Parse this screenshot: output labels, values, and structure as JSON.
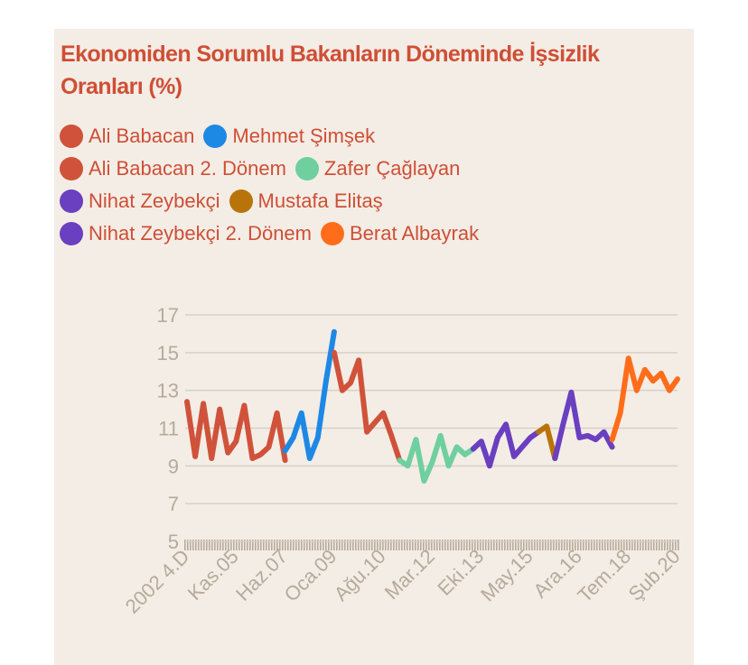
{
  "chart_data": {
    "type": "line",
    "title": "Ekonomiden Sorumlu Bakanların Döneminde İşsizlik Oranları (%)",
    "categories": [
      "2002 4.D",
      null,
      null,
      null,
      null,
      null,
      "Kas.05",
      null,
      null,
      null,
      null,
      null,
      "Haz.07",
      null,
      null,
      null,
      null,
      null,
      "Oca.09",
      null,
      null,
      null,
      null,
      null,
      "Ağu.10",
      null,
      null,
      null,
      null,
      null,
      "Mar.12",
      null,
      null,
      null,
      null,
      null,
      "Eki.13",
      null,
      null,
      null,
      null,
      null,
      "May.15",
      null,
      null,
      null,
      null,
      null,
      "Ara.16",
      null,
      null,
      null,
      null,
      null,
      "Tem.18",
      null,
      null,
      null,
      null,
      null,
      "Şub.20"
    ],
    "series": [
      {
        "name": "Ali Babacan",
        "color": "#d0523a",
        "values": [
          12.4,
          9.5,
          12.3,
          9.4,
          12.0,
          9.7,
          10.3,
          12.2,
          9.4,
          9.6,
          10.0,
          11.8,
          9.3,
          null,
          null,
          null,
          null,
          null,
          null,
          null,
          null,
          null,
          null,
          null,
          null,
          null,
          null,
          null,
          null,
          null,
          null,
          null,
          null,
          null,
          null,
          null,
          null,
          null,
          null,
          null,
          null,
          null,
          null,
          null,
          null,
          null,
          null,
          null,
          null,
          null,
          null,
          null,
          null,
          null,
          null,
          null,
          null,
          null,
          null,
          null,
          null
        ]
      },
      {
        "name": "Mehmet Şimşek",
        "color": "#1e88e5",
        "values": [
          null,
          null,
          null,
          null,
          null,
          null,
          null,
          null,
          null,
          null,
          null,
          null,
          9.8,
          10.5,
          11.8,
          9.4,
          10.5,
          13.5,
          16.1,
          null,
          null,
          null,
          null,
          null,
          null,
          null,
          null,
          null,
          null,
          null,
          null,
          null,
          null,
          null,
          null,
          null,
          null,
          null,
          null,
          null,
          null,
          null,
          null,
          null,
          null,
          null,
          null,
          null,
          null,
          null,
          null,
          null,
          null,
          null,
          null,
          null,
          null,
          null,
          null,
          null,
          null
        ]
      },
      {
        "name": "Ali Babacan 2. Dönem",
        "color": "#d0523a",
        "values": [
          null,
          null,
          null,
          null,
          null,
          null,
          null,
          null,
          null,
          null,
          null,
          null,
          null,
          null,
          null,
          null,
          null,
          null,
          15.0,
          13.0,
          13.4,
          14.6,
          10.8,
          11.3,
          11.8,
          10.6,
          9.3,
          null,
          null,
          null,
          null,
          null,
          null,
          null,
          null,
          null,
          null,
          null,
          null,
          null,
          null,
          null,
          null,
          null,
          null,
          null,
          null,
          null,
          null,
          null,
          null,
          null,
          null,
          null,
          null,
          null,
          null,
          null,
          null,
          null,
          null
        ]
      },
      {
        "name": "Zafer Çağlayan",
        "color": "#6fcf9f",
        "values": [
          null,
          null,
          null,
          null,
          null,
          null,
          null,
          null,
          null,
          null,
          null,
          null,
          null,
          null,
          null,
          null,
          null,
          null,
          null,
          null,
          null,
          null,
          null,
          null,
          null,
          null,
          9.3,
          9.0,
          10.4,
          8.2,
          9.2,
          10.6,
          9.0,
          10.0,
          9.6,
          9.9,
          null,
          null,
          null,
          null,
          null,
          null,
          null,
          null,
          null,
          null,
          null,
          null,
          null,
          null,
          null,
          null,
          null,
          null,
          null,
          null,
          null,
          null,
          null,
          null,
          null
        ]
      },
      {
        "name": "Nihat Zeybekçi",
        "color": "#6a3fc0",
        "values": [
          null,
          null,
          null,
          null,
          null,
          null,
          null,
          null,
          null,
          null,
          null,
          null,
          null,
          null,
          null,
          null,
          null,
          null,
          null,
          null,
          null,
          null,
          null,
          null,
          null,
          null,
          null,
          null,
          null,
          null,
          null,
          null,
          null,
          null,
          null,
          9.9,
          10.3,
          9.0,
          10.5,
          11.2,
          9.5,
          10.0,
          10.5,
          10.8,
          null,
          null,
          null,
          null,
          null,
          null,
          null,
          null,
          null,
          null,
          null,
          null,
          null,
          null,
          null,
          null,
          null
        ]
      },
      {
        "name": "Mustafa Elitaş",
        "color": "#b8740a",
        "values": [
          null,
          null,
          null,
          null,
          null,
          null,
          null,
          null,
          null,
          null,
          null,
          null,
          null,
          null,
          null,
          null,
          null,
          null,
          null,
          null,
          null,
          null,
          null,
          null,
          null,
          null,
          null,
          null,
          null,
          null,
          null,
          null,
          null,
          null,
          null,
          null,
          null,
          null,
          null,
          null,
          null,
          null,
          null,
          10.8,
          11.1,
          9.4,
          null,
          null,
          null,
          null,
          null,
          null,
          null,
          null,
          null,
          null,
          null,
          null,
          null,
          null,
          null
        ]
      },
      {
        "name": "Nihat Zeybekçi 2. Dönem",
        "color": "#6a3fc0",
        "values": [
          null,
          null,
          null,
          null,
          null,
          null,
          null,
          null,
          null,
          null,
          null,
          null,
          null,
          null,
          null,
          null,
          null,
          null,
          null,
          null,
          null,
          null,
          null,
          null,
          null,
          null,
          null,
          null,
          null,
          null,
          null,
          null,
          null,
          null,
          null,
          null,
          null,
          null,
          null,
          null,
          null,
          null,
          null,
          null,
          null,
          9.4,
          11.2,
          12.9,
          10.5,
          10.6,
          10.4,
          10.8,
          10.0,
          null,
          null,
          null,
          null,
          null,
          null,
          null,
          null
        ]
      },
      {
        "name": "Berat Albayrak",
        "color": "#ff6d1a",
        "values": [
          null,
          null,
          null,
          null,
          null,
          null,
          null,
          null,
          null,
          null,
          null,
          null,
          null,
          null,
          null,
          null,
          null,
          null,
          null,
          null,
          null,
          null,
          null,
          null,
          null,
          null,
          null,
          null,
          null,
          null,
          null,
          null,
          null,
          null,
          null,
          null,
          null,
          null,
          null,
          null,
          null,
          null,
          null,
          null,
          null,
          null,
          null,
          null,
          null,
          null,
          null,
          null,
          10.4,
          11.8,
          14.7,
          13.0,
          14.1,
          13.5,
          13.9,
          13.0,
          13.6
        ]
      }
    ],
    "ylim": [
      5,
      17
    ],
    "yticks": [
      5,
      7,
      9,
      11,
      13,
      15,
      17
    ],
    "grid": true
  }
}
